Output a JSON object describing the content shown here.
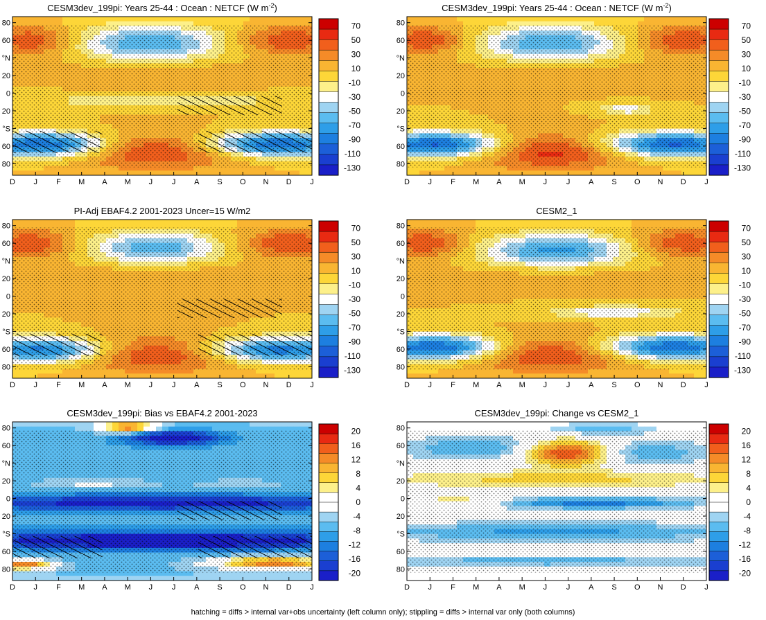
{
  "chart_data": [
    {
      "type": "heatmap",
      "title": "CESM3dev_199pi: Years 25-44 : Ocean : NETCF (W m",
      "title_sup": "-2",
      "title_close": ")",
      "x_ticks": [
        "D",
        "J",
        "F",
        "M",
        "A",
        "M",
        "J",
        "J",
        "A",
        "S",
        "O",
        "N",
        "D",
        "J"
      ],
      "y_ticks": [
        "80",
        "60",
        "°N",
        "20",
        "0",
        "20",
        "°S",
        "60",
        "80"
      ],
      "colorbar": [
        "70",
        "50",
        "30",
        "10",
        "-10",
        "-30",
        "-50",
        "-70",
        "-90",
        "-110",
        "-130"
      ],
      "scale": "netcf",
      "hatching": true,
      "stippling": true,
      "features": [
        {
          "x": 6.0,
          "y": 60,
          "v": -75,
          "sx": 2.2,
          "sy": 14
        },
        {
          "x": 0.8,
          "y": 63,
          "v": 45,
          "sx": 1.3,
          "sy": 11
        },
        {
          "x": 12.0,
          "y": 63,
          "v": 45,
          "sx": 1.5,
          "sy": 11
        },
        {
          "x": 6.3,
          "y": -63,
          "v": 50,
          "sx": 2.5,
          "sy": 14
        },
        {
          "x": 1.3,
          "y": -55,
          "v": -110,
          "sx": 2.0,
          "sy": 10
        },
        {
          "x": 11.5,
          "y": -55,
          "v": -110,
          "sx": 2.2,
          "sy": 10
        },
        {
          "x": 6.5,
          "y": 25,
          "v": 12,
          "sx": 4.0,
          "sy": 10
        },
        {
          "x": 6.5,
          "y": -5,
          "v": -25,
          "sx": 4.5,
          "sy": 6
        }
      ]
    },
    {
      "type": "heatmap",
      "title": "CESM3dev_199pi: Years 25-44 : Ocean : NETCF (W m",
      "title_sup": "-2",
      "title_close": ")",
      "x_ticks": [
        "D",
        "J",
        "F",
        "M",
        "A",
        "M",
        "J",
        "J",
        "A",
        "S",
        "O",
        "N",
        "D",
        "J"
      ],
      "y_ticks": [
        "80",
        "60",
        "°N",
        "20",
        "0",
        "20",
        "°S",
        "60",
        "80"
      ],
      "colorbar": [
        "70",
        "50",
        "30",
        "10",
        "-10",
        "-30",
        "-50",
        "-70",
        "-90",
        "-110",
        "-130"
      ],
      "scale": "netcf",
      "hatching": false,
      "stippling": true,
      "features": [
        {
          "x": 6.2,
          "y": 60,
          "v": -75,
          "sx": 2.2,
          "sy": 14
        },
        {
          "x": 0.8,
          "y": 63,
          "v": 45,
          "sx": 1.3,
          "sy": 11
        },
        {
          "x": 12.0,
          "y": 63,
          "v": 45,
          "sx": 1.5,
          "sy": 11
        },
        {
          "x": 6.3,
          "y": -63,
          "v": 55,
          "sx": 2.3,
          "sy": 14
        },
        {
          "x": 1.3,
          "y": -55,
          "v": -110,
          "sx": 2.0,
          "sy": 10
        },
        {
          "x": 11.5,
          "y": -55,
          "v": -110,
          "sx": 2.2,
          "sy": 10
        },
        {
          "x": 6.5,
          "y": 25,
          "v": 10,
          "sx": 4.0,
          "sy": 10
        },
        {
          "x": 9.5,
          "y": -15,
          "v": -45,
          "sx": 0.8,
          "sy": 4
        }
      ]
    },
    {
      "type": "heatmap",
      "title": "PI-Adj EBAF4.2 2001-2023 Uncer=15 W/m2",
      "x_ticks": [
        "D",
        "J",
        "F",
        "M",
        "A",
        "M",
        "J",
        "J",
        "A",
        "S",
        "O",
        "N",
        "D",
        "J"
      ],
      "y_ticks": [
        "80",
        "60",
        "°N",
        "20",
        "0",
        "20",
        "°S",
        "60",
        "80"
      ],
      "colorbar": [
        "70",
        "50",
        "30",
        "10",
        "-10",
        "-30",
        "-50",
        "-70",
        "-90",
        "-110",
        "-130"
      ],
      "scale": "netcf",
      "hatching": true,
      "stippling": true,
      "features": [
        {
          "x": 6.2,
          "y": 58,
          "v": -70,
          "sx": 2.0,
          "sy": 13
        },
        {
          "x": 0.8,
          "y": 63,
          "v": 45,
          "sx": 1.3,
          "sy": 11
        },
        {
          "x": 12.0,
          "y": 63,
          "v": 45,
          "sx": 1.5,
          "sy": 11
        },
        {
          "x": 6.3,
          "y": -63,
          "v": 50,
          "sx": 2.5,
          "sy": 14
        },
        {
          "x": 1.3,
          "y": -58,
          "v": -100,
          "sx": 2.0,
          "sy": 10
        },
        {
          "x": 11.5,
          "y": -58,
          "v": -100,
          "sx": 2.2,
          "sy": 10
        },
        {
          "x": 6.5,
          "y": 25,
          "v": 15,
          "sx": 4.0,
          "sy": 10
        }
      ]
    },
    {
      "type": "heatmap",
      "title": "CESM2_1",
      "x_ticks": [
        "D",
        "J",
        "F",
        "M",
        "A",
        "M",
        "J",
        "J",
        "A",
        "S",
        "O",
        "N",
        "D",
        "J"
      ],
      "y_ticks": [
        "80",
        "60",
        "°N",
        "20",
        "0",
        "20",
        "°S",
        "60",
        "80"
      ],
      "colorbar": [
        "70",
        "50",
        "30",
        "10",
        "-10",
        "-30",
        "-50",
        "-70",
        "-90",
        "-110",
        "-130"
      ],
      "scale": "netcf",
      "hatching": false,
      "stippling": true,
      "features": [
        {
          "x": 6.5,
          "y": 55,
          "v": -80,
          "sx": 2.3,
          "sy": 13
        },
        {
          "x": 0.8,
          "y": 63,
          "v": 45,
          "sx": 1.3,
          "sy": 11
        },
        {
          "x": 12.0,
          "y": 63,
          "v": 45,
          "sx": 1.5,
          "sy": 11
        },
        {
          "x": 6.3,
          "y": -63,
          "v": 50,
          "sx": 2.5,
          "sy": 14
        },
        {
          "x": 1.3,
          "y": -55,
          "v": -110,
          "sx": 2.0,
          "sy": 10
        },
        {
          "x": 11.5,
          "y": -55,
          "v": -110,
          "sx": 2.2,
          "sy": 10
        },
        {
          "x": 6.5,
          "y": 25,
          "v": 10,
          "sx": 4.0,
          "sy": 10
        },
        {
          "x": 9.0,
          "y": -15,
          "v": -45,
          "sx": 2.0,
          "sy": 5
        }
      ]
    },
    {
      "type": "heatmap",
      "title": "CESM3dev_199pi: Bias vs EBAF4.2 2001-2023",
      "x_ticks": [
        "D",
        "J",
        "F",
        "M",
        "A",
        "M",
        "J",
        "J",
        "A",
        "S",
        "O",
        "N",
        "D",
        "J"
      ],
      "y_ticks": [
        "80",
        "60",
        "°N",
        "20",
        "0",
        "20",
        "°S",
        "60",
        "80"
      ],
      "colorbar": [
        "20",
        "16",
        "12",
        "8",
        "4",
        "0",
        "-4",
        "-8",
        "-12",
        "-16",
        "-20"
      ],
      "scale": "diff",
      "hatching": true,
      "stippling": true,
      "features": [
        {
          "x": 0,
          "y": 0,
          "v": -8,
          "sx": 100,
          "sy": 100
        },
        {
          "x": 5.0,
          "y": 84,
          "v": 20,
          "sx": 0.8,
          "sy": 5
        },
        {
          "x": 7.0,
          "y": 72,
          "v": -18,
          "sx": 1.5,
          "sy": 6
        },
        {
          "x": 6.5,
          "y": -2,
          "v": -14,
          "sx": 7.0,
          "sy": 6
        },
        {
          "x": 6.5,
          "y": -45,
          "v": -18,
          "sx": 7.0,
          "sy": 7
        },
        {
          "x": 11.3,
          "y": -70,
          "v": 20,
          "sx": 1.8,
          "sy": 5
        },
        {
          "x": 0.5,
          "y": -72,
          "v": 20,
          "sx": 0.9,
          "sy": 4
        },
        {
          "x": 3.5,
          "y": 20,
          "v": 6,
          "sx": 2.0,
          "sy": 4
        },
        {
          "x": 10.0,
          "y": 20,
          "v": 4,
          "sx": 1.8,
          "sy": 4
        }
      ]
    },
    {
      "type": "heatmap",
      "title": "CESM3dev_199pi: Change vs CESM2_1",
      "x_ticks": [
        "D",
        "J",
        "F",
        "M",
        "A",
        "M",
        "J",
        "J",
        "A",
        "S",
        "O",
        "N",
        "D",
        "J"
      ],
      "y_ticks": [
        "80",
        "60",
        "°N",
        "20",
        "0",
        "20",
        "°S",
        "60",
        "80"
      ],
      "colorbar": [
        "20",
        "16",
        "12",
        "8",
        "4",
        "0",
        "-4",
        "-8",
        "-12",
        "-16",
        "-20"
      ],
      "scale": "diff",
      "hatching": false,
      "stippling": true,
      "features": [
        {
          "x": 7.0,
          "y": 55,
          "v": 20,
          "sx": 1.3,
          "sy": 10
        },
        {
          "x": 3.0,
          "y": 60,
          "v": -8,
          "sx": 2.5,
          "sy": 10
        },
        {
          "x": 10.5,
          "y": 55,
          "v": -8,
          "sx": 2.0,
          "sy": 10
        },
        {
          "x": 6.5,
          "y": 25,
          "v": 7,
          "sx": 5.0,
          "sy": 7
        },
        {
          "x": 8.0,
          "y": -2,
          "v": -12,
          "sx": 3.5,
          "sy": 5
        },
        {
          "x": 2.5,
          "y": 0,
          "v": 6,
          "sx": 1.5,
          "sy": 5
        },
        {
          "x": 6.5,
          "y": -35,
          "v": -9,
          "sx": 6.5,
          "sy": 8
        },
        {
          "x": 6.0,
          "y": -68,
          "v": -7,
          "sx": 6.0,
          "sy": 5
        },
        {
          "x": 8.5,
          "y": 82,
          "v": -8,
          "sx": 1.5,
          "sy": 5
        }
      ]
    }
  ],
  "footnote": "hatching = diffs > internal var+obs uncertainty (left column only); stippling = diffs > internal var only (both columns)",
  "colors": {
    "netcf": [
      "#cc0000",
      "#e82a12",
      "#f15f1c",
      "#f58b28",
      "#f9b532",
      "#fdd638",
      "#fdf08a",
      "#ffffff",
      "#9fd4f2",
      "#5bbcf0",
      "#2e9ee8",
      "#1d7fe0",
      "#1c5fd8",
      "#1a3fd0",
      "#1a1fc8"
    ],
    "diff": [
      "#cc0000",
      "#e82a12",
      "#f15f1c",
      "#f58b28",
      "#f9b532",
      "#fdd638",
      "#fdf08a",
      "#ffffff",
      "#ffffff",
      "#9fd4f2",
      "#5bbcf0",
      "#2e9ee8",
      "#1d7fe0",
      "#1c5fd8",
      "#1a3fd0",
      "#1a1fc8"
    ]
  }
}
